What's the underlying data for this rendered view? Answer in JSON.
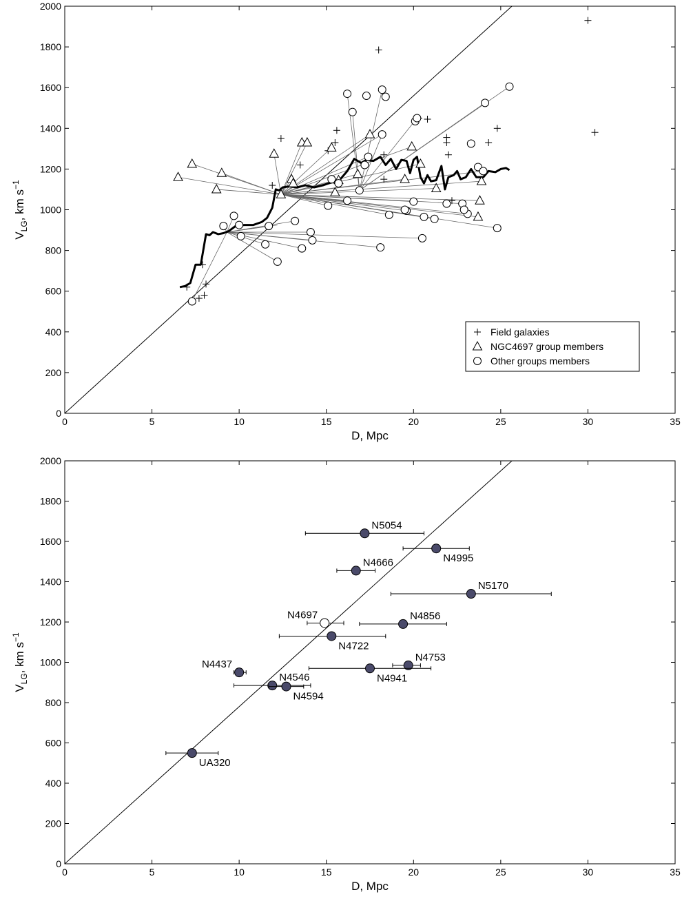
{
  "chart_data": [
    {
      "type": "scatter",
      "xlabel": "D, Mpc",
      "ylabel_main": "V",
      "ylabel_sub": "LG",
      "ylabel_tail": ", km s",
      "ylabel_sup": "−1",
      "xlim": [
        0,
        35
      ],
      "ylim": [
        0,
        2000
      ],
      "xticks": [
        0,
        5,
        10,
        15,
        20,
        25,
        30,
        35
      ],
      "yticks": [
        0,
        200,
        400,
        600,
        800,
        1000,
        1200,
        1400,
        1600,
        1800,
        2000
      ],
      "reference_line": {
        "slope": 78,
        "intercept": 0
      },
      "legend": {
        "position": "lower-right",
        "entries": [
          {
            "marker": "plus",
            "label": "Field galaxies"
          },
          {
            "marker": "triangle",
            "label": "NGC4697 group members"
          },
          {
            "marker": "circle",
            "label": "Other groups members"
          }
        ]
      },
      "field_galaxies": [
        [
          7.0,
          620
        ],
        [
          7.7,
          565
        ],
        [
          7.9,
          730
        ],
        [
          8.0,
          580
        ],
        [
          8.1,
          635
        ],
        [
          11.9,
          1120
        ],
        [
          12.4,
          1350
        ],
        [
          13.5,
          1220
        ],
        [
          15.1,
          1290
        ],
        [
          15.5,
          1330
        ],
        [
          15.6,
          1390
        ],
        [
          18.0,
          1785
        ],
        [
          18.3,
          1270
        ],
        [
          18.3,
          1150
        ],
        [
          20.3,
          1450
        ],
        [
          20.8,
          1445
        ],
        [
          21.9,
          1355
        ],
        [
          21.9,
          1330
        ],
        [
          22.0,
          1270
        ],
        [
          22.2,
          1045
        ],
        [
          24.3,
          1330
        ],
        [
          24.8,
          1400
        ],
        [
          30.0,
          1930
        ],
        [
          30.4,
          1380
        ]
      ],
      "ngc4697_members": [
        [
          6.5,
          1160
        ],
        [
          7.3,
          1225
        ],
        [
          8.7,
          1100
        ],
        [
          9.0,
          1180
        ],
        [
          12.0,
          1275
        ],
        [
          12.4,
          1075
        ],
        [
          13.0,
          1150
        ],
        [
          13.1,
          1130
        ],
        [
          13.6,
          1330
        ],
        [
          13.9,
          1330
        ],
        [
          15.3,
          1305
        ],
        [
          15.5,
          1085
        ],
        [
          15.7,
          1145
        ],
        [
          16.8,
          1175
        ],
        [
          17.5,
          1370
        ],
        [
          19.5,
          1150
        ],
        [
          19.9,
          1310
        ],
        [
          20.4,
          1225
        ],
        [
          21.3,
          1105
        ],
        [
          23.7,
          965
        ],
        [
          23.8,
          1045
        ],
        [
          23.9,
          1140
        ]
      ],
      "other_group_members": [
        [
          7.3,
          550
        ],
        [
          9.1,
          920
        ],
        [
          9.7,
          970
        ],
        [
          10.0,
          925
        ],
        [
          10.1,
          870
        ],
        [
          11.5,
          830
        ],
        [
          11.7,
          920
        ],
        [
          12.2,
          745
        ],
        [
          13.2,
          945
        ],
        [
          13.6,
          810
        ],
        [
          14.1,
          890
        ],
        [
          14.2,
          850
        ],
        [
          15.1,
          1020
        ],
        [
          15.3,
          1150
        ],
        [
          16.2,
          1570
        ],
        [
          16.5,
          1480
        ],
        [
          16.2,
          1045
        ],
        [
          16.9,
          1095
        ],
        [
          17.2,
          1220
        ],
        [
          17.3,
          1560
        ],
        [
          17.4,
          1260
        ],
        [
          18.1,
          815
        ],
        [
          18.2,
          1590
        ],
        [
          18.4,
          1555
        ],
        [
          18.2,
          1370
        ],
        [
          19.6,
          995
        ],
        [
          20.0,
          1040
        ],
        [
          20.1,
          1435
        ],
        [
          20.2,
          1450
        ],
        [
          20.6,
          965
        ],
        [
          21.2,
          955
        ],
        [
          22.8,
          1030
        ],
        [
          23.3,
          1325
        ],
        [
          23.7,
          1210
        ],
        [
          24.0,
          1190
        ],
        [
          23.1,
          980
        ],
        [
          24.8,
          910
        ],
        [
          25.5,
          1605
        ],
        [
          24.1,
          1525
        ],
        [
          21.9,
          1030
        ],
        [
          20.5,
          860
        ],
        [
          15.7,
          1130
        ],
        [
          18.6,
          975
        ],
        [
          19.5,
          1000
        ],
        [
          22.9,
          1000
        ]
      ],
      "connector_hubs": [
        [
          9.3,
          890
        ],
        [
          12.4,
          1075
        ],
        [
          16.9,
          1095
        ]
      ],
      "connector_lines": [
        [
          1,
          [
            6.5,
            1160
          ]
        ],
        [
          1,
          [
            7.3,
            1225
          ]
        ],
        [
          1,
          [
            8.7,
            1100
          ]
        ],
        [
          1,
          [
            9.0,
            1180
          ]
        ],
        [
          1,
          [
            12.0,
            1275
          ]
        ],
        [
          1,
          [
            13.6,
            1330
          ]
        ],
        [
          1,
          [
            13.9,
            1330
          ]
        ],
        [
          1,
          [
            15.3,
            1305
          ]
        ],
        [
          1,
          [
            17.5,
            1370
          ]
        ],
        [
          1,
          [
            18.2,
            1370
          ]
        ],
        [
          1,
          [
            19.9,
            1310
          ]
        ],
        [
          1,
          [
            21.3,
            1105
          ]
        ],
        [
          1,
          [
            23.7,
            965
          ]
        ],
        [
          1,
          [
            23.8,
            1045
          ]
        ],
        [
          1,
          [
            23.9,
            1140
          ]
        ],
        [
          1,
          [
            24.0,
            1190
          ]
        ],
        [
          1,
          [
            24.8,
            910
          ]
        ],
        [
          1,
          [
            23.1,
            980
          ]
        ],
        [
          1,
          [
            22.8,
            1030
          ]
        ],
        [
          1,
          [
            21.2,
            955
          ]
        ],
        [
          1,
          [
            20.6,
            965
          ]
        ],
        [
          1,
          [
            19.6,
            995
          ]
        ],
        [
          1,
          [
            20.0,
            1040
          ]
        ],
        [
          1,
          [
            16.2,
            1045
          ]
        ],
        [
          1,
          [
            15.1,
            1020
          ]
        ],
        [
          1,
          [
            17.4,
            1260
          ]
        ],
        [
          1,
          [
            19.5,
            1150
          ]
        ],
        [
          1,
          [
            20.4,
            1225
          ]
        ],
        [
          1,
          [
            16.8,
            1175
          ]
        ],
        [
          1,
          [
            15.7,
            1145
          ]
        ],
        [
          1,
          [
            13.0,
            1150
          ]
        ],
        [
          1,
          [
            18.6,
            975
          ]
        ],
        [
          0,
          [
            7.3,
            550
          ]
        ],
        [
          0,
          [
            9.1,
            920
          ]
        ],
        [
          0,
          [
            9.7,
            970
          ]
        ],
        [
          0,
          [
            10.0,
            925
          ]
        ],
        [
          0,
          [
            11.5,
            830
          ]
        ],
        [
          0,
          [
            12.2,
            745
          ]
        ],
        [
          0,
          [
            13.6,
            810
          ]
        ],
        [
          0,
          [
            14.2,
            850
          ]
        ],
        [
          0,
          [
            18.1,
            815
          ]
        ],
        [
          0,
          [
            20.5,
            860
          ]
        ],
        [
          0,
          [
            14.1,
            890
          ]
        ],
        [
          0,
          [
            11.7,
            920
          ]
        ],
        [
          0,
          [
            12.2,
            925
          ]
        ],
        [
          0,
          [
            13.2,
            945
          ]
        ],
        [
          2,
          [
            16.2,
            1570
          ]
        ],
        [
          2,
          [
            18.2,
            1590
          ]
        ],
        [
          2,
          [
            25.5,
            1605
          ]
        ],
        [
          2,
          [
            16.5,
            1480
          ]
        ],
        [
          2,
          [
            18.2,
            1370
          ]
        ],
        [
          2,
          [
            20.2,
            1450
          ]
        ],
        [
          2,
          [
            24.1,
            1525
          ]
        ]
      ],
      "running_mean": [
        [
          6.6,
          620
        ],
        [
          6.9,
          625
        ],
        [
          7.2,
          640
        ],
        [
          7.5,
          730
        ],
        [
          7.8,
          730
        ],
        [
          8.1,
          880
        ],
        [
          8.3,
          875
        ],
        [
          8.5,
          890
        ],
        [
          8.8,
          880
        ],
        [
          9.1,
          885
        ],
        [
          9.4,
          895
        ],
        [
          9.8,
          920
        ],
        [
          10.3,
          925
        ],
        [
          10.8,
          925
        ],
        [
          11.3,
          940
        ],
        [
          11.6,
          960
        ],
        [
          11.9,
          1010
        ],
        [
          12.1,
          1100
        ],
        [
          12.3,
          1095
        ],
        [
          12.5,
          1110
        ],
        [
          12.9,
          1115
        ],
        [
          13.3,
          1110
        ],
        [
          13.8,
          1120
        ],
        [
          14.3,
          1110
        ],
        [
          14.8,
          1120
        ],
        [
          15.3,
          1135
        ],
        [
          15.8,
          1150
        ],
        [
          16.2,
          1190
        ],
        [
          16.6,
          1250
        ],
        [
          17.0,
          1230
        ],
        [
          17.3,
          1245
        ],
        [
          17.7,
          1240
        ],
        [
          18.1,
          1260
        ],
        [
          18.4,
          1220
        ],
        [
          18.7,
          1250
        ],
        [
          19.0,
          1200
        ],
        [
          19.3,
          1245
        ],
        [
          19.6,
          1240
        ],
        [
          19.8,
          1180
        ],
        [
          20.0,
          1245
        ],
        [
          20.2,
          1260
        ],
        [
          20.4,
          1160
        ],
        [
          20.6,
          1130
        ],
        [
          20.8,
          1170
        ],
        [
          21.0,
          1140
        ],
        [
          21.3,
          1145
        ],
        [
          21.6,
          1215
        ],
        [
          21.8,
          1100
        ],
        [
          22.0,
          1160
        ],
        [
          22.3,
          1170
        ],
        [
          22.5,
          1190
        ],
        [
          22.7,
          1150
        ],
        [
          23.0,
          1160
        ],
        [
          23.3,
          1200
        ],
        [
          23.6,
          1160
        ],
        [
          24.0,
          1160
        ],
        [
          24.3,
          1190
        ],
        [
          24.7,
          1185
        ],
        [
          25.0,
          1200
        ],
        [
          25.3,
          1205
        ],
        [
          25.5,
          1195
        ]
      ]
    },
    {
      "type": "scatter",
      "xlabel": "D, Mpc",
      "ylabel_main": "V",
      "ylabel_sub": "LG",
      "ylabel_tail": ", km s",
      "ylabel_sup": "−1",
      "xlim": [
        0,
        35
      ],
      "ylim": [
        0,
        2000
      ],
      "xticks": [
        0,
        5,
        10,
        15,
        20,
        25,
        30,
        35
      ],
      "yticks": [
        0,
        200,
        400,
        600,
        800,
        1000,
        1200,
        1400,
        1600,
        1800,
        2000
      ],
      "reference_line": {
        "slope": 78,
        "intercept": 0
      },
      "groups": [
        {
          "name": "N5054",
          "D": 17.2,
          "V": 1640,
          "xerr": [
            13.8,
            20.6
          ],
          "filled": true,
          "label_anchor": "right-up"
        },
        {
          "name": "N4995",
          "D": 21.3,
          "V": 1565,
          "xerr": [
            19.4,
            23.2
          ],
          "filled": true,
          "label_anchor": "right-down"
        },
        {
          "name": "N4666",
          "D": 16.7,
          "V": 1455,
          "xerr": [
            15.6,
            17.8
          ],
          "filled": true,
          "label_anchor": "right-up"
        },
        {
          "name": "N5170",
          "D": 23.3,
          "V": 1340,
          "xerr": [
            18.7,
            27.9
          ],
          "filled": true,
          "label_anchor": "right-up"
        },
        {
          "name": "N4697",
          "D": 14.9,
          "V": 1195,
          "xerr": [
            13.9,
            16.0
          ],
          "filled": false,
          "label_anchor": "left-up"
        },
        {
          "name": "N4856",
          "D": 19.4,
          "V": 1190,
          "xerr": [
            16.9,
            21.9
          ],
          "filled": true,
          "label_anchor": "right-up"
        },
        {
          "name": "N4722",
          "D": 15.3,
          "V": 1130,
          "xerr": [
            12.3,
            18.4
          ],
          "filled": true,
          "label_anchor": "right-down"
        },
        {
          "name": "N4437",
          "D": 10.0,
          "V": 950,
          "xerr": [
            9.7,
            10.4
          ],
          "filled": true,
          "label_anchor": "left-up"
        },
        {
          "name": "N4753",
          "D": 19.7,
          "V": 985,
          "xerr": [
            18.8,
            20.4
          ],
          "filled": true,
          "label_anchor": "right-up"
        },
        {
          "name": "N4941",
          "D": 17.5,
          "V": 970,
          "xerr": [
            14.0,
            21.0
          ],
          "filled": true,
          "label_anchor": "right-down"
        },
        {
          "name": "N4546",
          "D": 11.9,
          "V": 885,
          "xerr": [
            9.7,
            14.1
          ],
          "filled": true,
          "label_anchor": "right-up"
        },
        {
          "name": "N4594",
          "D": 12.7,
          "V": 880,
          "xerr": [
            11.7,
            13.7
          ],
          "filled": true,
          "label_anchor": "right-down"
        },
        {
          "name": "UA320",
          "D": 7.3,
          "V": 550,
          "xerr": [
            5.8,
            8.8
          ],
          "filled": true,
          "label_anchor": "right-down"
        }
      ],
      "filled_color": "#4a4a6a",
      "open_color": "#ffffff"
    }
  ]
}
